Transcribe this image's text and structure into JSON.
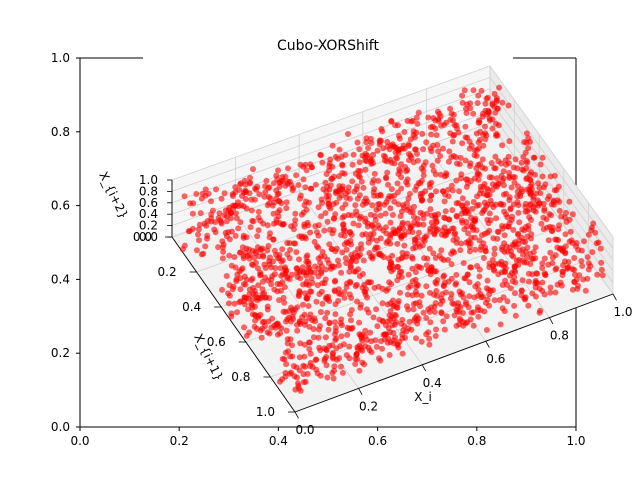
{
  "chart_data": {
    "type": "scatter",
    "projection": "3d",
    "title": "Cubo-XORShift",
    "xlabel": "X_i",
    "ylabel": "X_{i+1}",
    "zlabel": "X_{i+2}",
    "xlim": [
      0,
      1
    ],
    "ylim": [
      0,
      1
    ],
    "zlim": [
      0,
      1
    ],
    "x_ticks": [
      "0.0",
      "0.2",
      "0.4",
      "0.6",
      "0.8",
      "1.0"
    ],
    "y_ticks": [
      "0.0",
      "0.2",
      "0.4",
      "0.6",
      "0.8",
      "1.0"
    ],
    "z_ticks": [
      "0.0",
      "0.2",
      "0.4",
      "0.6",
      "0.8",
      "1.0"
    ],
    "grid": true,
    "marker_color": "#ff0000",
    "marker_alpha": 0.6,
    "point_count": 2000,
    "bands": [
      {
        "x_from": 0.0,
        "x_to": 1.0,
        "y_center": 0.12,
        "width": 0.06
      },
      {
        "x_from": 0.0,
        "x_to": 1.0,
        "y_center": 0.42,
        "width": 0.07
      },
      {
        "x_from": 0.0,
        "x_to": 1.0,
        "y_center": 0.62,
        "width": 0.07
      },
      {
        "x_from": 0.0,
        "x_to": 1.0,
        "y_center": 0.9,
        "width": 0.06
      }
    ],
    "background_axes": {
      "x_ticks": [
        "0.0",
        "0.2",
        "0.4",
        "0.6",
        "0.8",
        "1.0"
      ],
      "y_ticks": [
        "0.0",
        "0.2",
        "0.4",
        "0.6",
        "0.8",
        "1.0"
      ],
      "xlim": [
        0,
        1
      ],
      "ylim": [
        0,
        1
      ]
    }
  }
}
